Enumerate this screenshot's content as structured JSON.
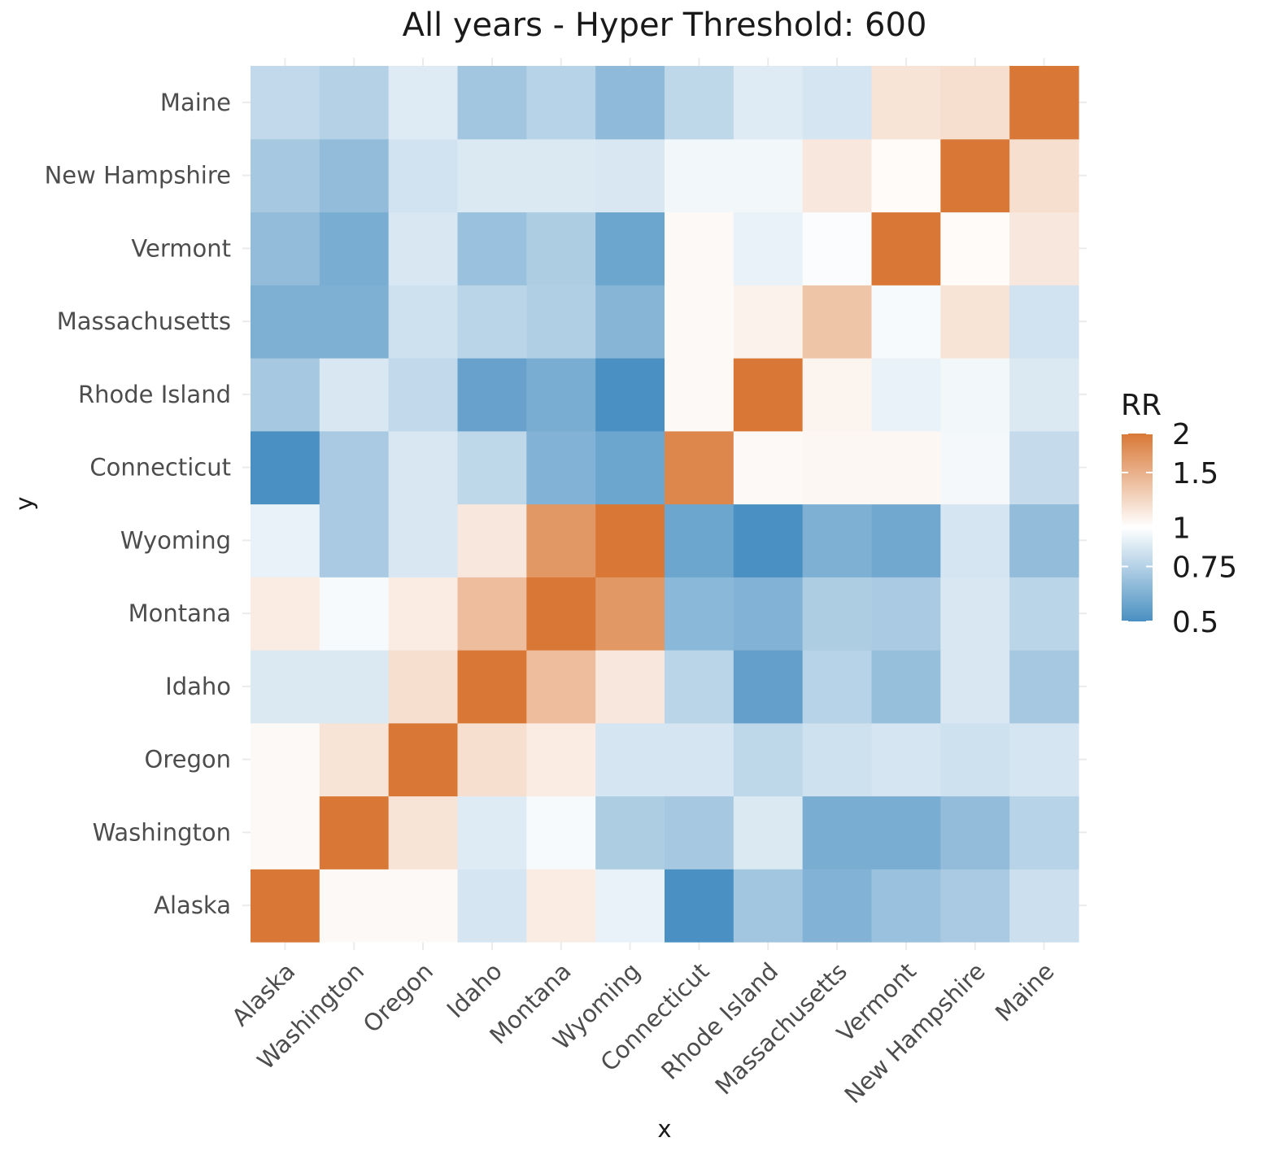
{
  "chart_data": {
    "type": "heatmap",
    "title": "All years - Hyper Threshold: 600",
    "xlabel": "x",
    "ylabel": "y",
    "x_categories": [
      "Alaska",
      "Washington",
      "Oregon",
      "Idaho",
      "Montana",
      "Wyoming",
      "Connecticut",
      "Rhode Island",
      "Massachusetts",
      "Vermont",
      "New Hampshire",
      "Maine"
    ],
    "y_categories": [
      "Alaska",
      "Washington",
      "Oregon",
      "Idaho",
      "Montana",
      "Wyoming",
      "Connecticut",
      "Rhode Island",
      "Massachusetts",
      "Vermont",
      "New Hampshire",
      "Maine"
    ],
    "values": [
      [
        2.0,
        1.03,
        1.03,
        0.85,
        1.1,
        0.92,
        0.5,
        0.7,
        0.62,
        0.68,
        0.72,
        0.82
      ],
      [
        1.03,
        2.0,
        1.15,
        0.88,
        0.97,
        0.73,
        0.71,
        0.87,
        0.6,
        0.6,
        0.66,
        0.76
      ],
      [
        1.03,
        1.15,
        2.0,
        1.18,
        1.1,
        0.85,
        0.85,
        0.78,
        0.83,
        0.85,
        0.83,
        0.85
      ],
      [
        0.87,
        0.87,
        1.18,
        2.0,
        1.4,
        1.13,
        0.77,
        0.55,
        0.76,
        0.67,
        0.86,
        0.71
      ],
      [
        1.1,
        0.97,
        1.1,
        1.4,
        2.0,
        1.7,
        0.64,
        0.62,
        0.73,
        0.72,
        0.86,
        0.77
      ],
      [
        0.92,
        0.72,
        0.86,
        1.13,
        1.7,
        2.0,
        0.57,
        0.5,
        0.61,
        0.58,
        0.85,
        0.66
      ],
      [
        0.5,
        0.72,
        0.86,
        0.78,
        0.62,
        0.57,
        1.85,
        1.03,
        1.04,
        1.04,
        0.96,
        0.8
      ],
      [
        0.71,
        0.86,
        0.79,
        0.56,
        0.6,
        0.5,
        1.03,
        2.0,
        1.06,
        0.92,
        0.95,
        0.87
      ],
      [
        0.61,
        0.61,
        0.83,
        0.77,
        0.74,
        0.63,
        1.03,
        1.07,
        1.35,
        0.97,
        1.15,
        0.84
      ],
      [
        0.66,
        0.6,
        0.86,
        0.68,
        0.73,
        0.57,
        1.03,
        0.92,
        0.98,
        2.0,
        1.02,
        1.13
      ],
      [
        0.71,
        0.66,
        0.84,
        0.87,
        0.87,
        0.86,
        0.95,
        0.95,
        1.13,
        1.02,
        2.0,
        1.18
      ],
      [
        0.79,
        0.75,
        0.88,
        0.7,
        0.76,
        0.65,
        0.78,
        0.88,
        0.85,
        1.15,
        1.18,
        2.0
      ]
    ],
    "legend": {
      "title": "RR",
      "breaks": [
        2,
        1.5,
        1,
        0.75,
        0.5
      ],
      "labels": [
        "2",
        "1.5",
        "1",
        "0.75",
        "0.5"
      ],
      "limits": [
        0.5,
        2
      ],
      "low_color": "#4a90c2",
      "mid_color": "#ffffff",
      "high_color": "#d97836",
      "midpoint": 1,
      "scale": "log",
      "placement": "right"
    },
    "grid": true
  }
}
